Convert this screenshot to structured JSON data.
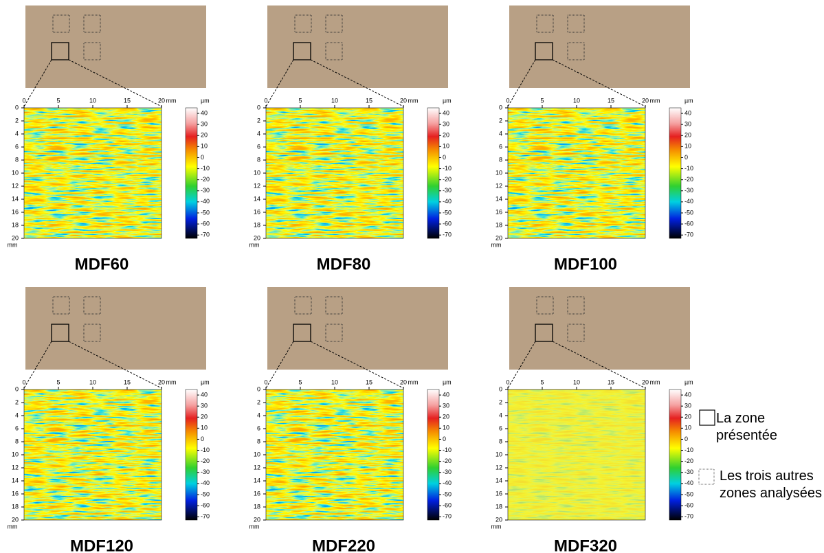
{
  "panels": [
    {
      "label": "MDF60"
    },
    {
      "label": "MDF80"
    },
    {
      "label": "MDF100"
    },
    {
      "label": "MDF120"
    },
    {
      "label": "MDF220"
    },
    {
      "label": "MDF320"
    }
  ],
  "map_axes": {
    "xticks": [
      0,
      5,
      10,
      15,
      20
    ],
    "yticks": [
      0,
      2,
      4,
      6,
      8,
      10,
      12,
      14,
      16,
      18,
      20
    ],
    "xlim": [
      0,
      20
    ],
    "ylim": [
      0,
      20
    ],
    "unit": "mm"
  },
  "colorbar": {
    "ticks": [
      40,
      30,
      20,
      10,
      0,
      -10,
      -20,
      -30,
      -40,
      -50,
      -60,
      -70
    ],
    "lim": [
      -73,
      45
    ],
    "unit": "µm"
  },
  "legend": {
    "presented": "La zone présentée",
    "others": "Les trois autres zones analysées"
  }
}
